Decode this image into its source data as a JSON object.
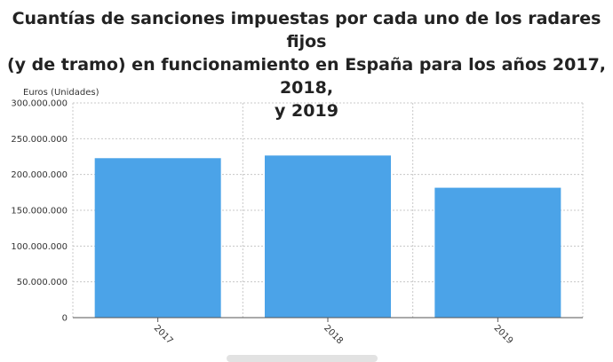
{
  "chart_data": {
    "type": "bar",
    "title_lines": [
      "Cuantías de sanciones impuestas por cada uno de los radares fijos",
      "(y de tramo) en funcionamiento en España para los años 2017, 2018,",
      "y 2019"
    ],
    "ylabel": "Euros (Unidades)",
    "xlabel": "",
    "categories": [
      "2017",
      "2018",
      "2019"
    ],
    "values": [
      222800000,
      226500000,
      181500000
    ],
    "ylim": [
      0,
      300000000
    ],
    "yticks": [
      0,
      50000000,
      100000000,
      150000000,
      200000000,
      250000000,
      300000000
    ],
    "ytick_labels": [
      "0",
      "50.000.000",
      "100.000.000",
      "150.000.000",
      "200.000.000",
      "250.000.000",
      "300.000.000"
    ],
    "bar_color": "#4ba3e8",
    "grid": true,
    "legend": false
  }
}
